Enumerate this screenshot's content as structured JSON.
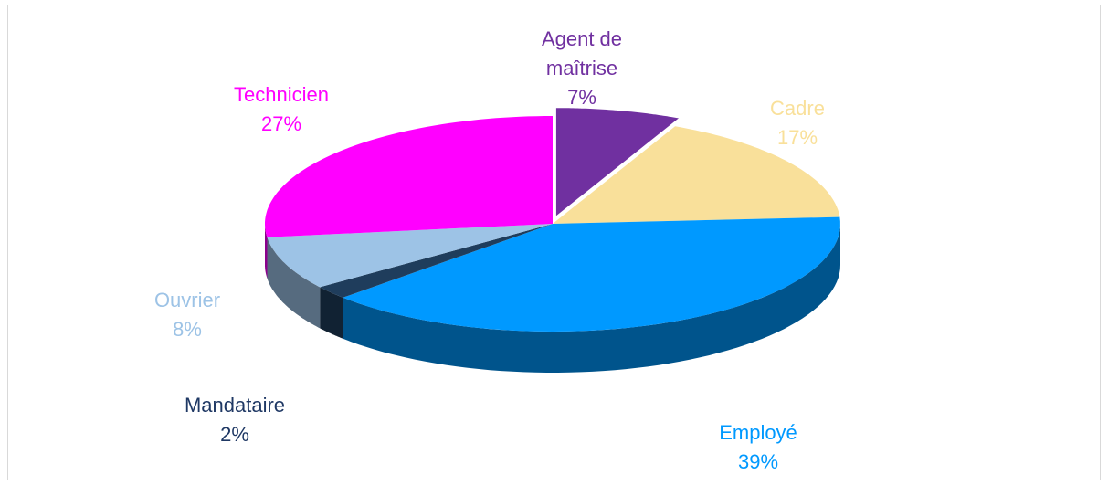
{
  "chart_data": {
    "type": "pie",
    "categories": [
      "Agent de maîtrise",
      "Cadre",
      "Employé",
      "Mandataire",
      "Ouvrier",
      "Technicien"
    ],
    "values": [
      7,
      17,
      39,
      2,
      8,
      27
    ],
    "value_labels": [
      "7%",
      "17%",
      "39%",
      "2%",
      "8%",
      "27%"
    ],
    "colors": [
      "#7030a0",
      "#f9e09a",
      "#0099ff",
      "#1f3d5c",
      "#9dc3e6",
      "#ff00ff"
    ]
  }
}
